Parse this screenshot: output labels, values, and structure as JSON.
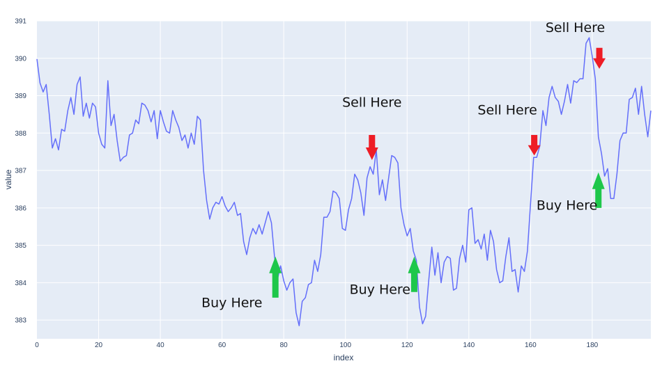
{
  "chart_data": {
    "type": "line",
    "title": "",
    "xlabel": "index",
    "ylabel": "value",
    "xlim": [
      0,
      199
    ],
    "ylim": [
      382.5,
      391
    ],
    "x_ticks": [
      "0",
      "20",
      "40",
      "60",
      "80",
      "100",
      "120",
      "140",
      "160",
      "180"
    ],
    "y_ticks": [
      "383",
      "384",
      "385",
      "386",
      "387",
      "388",
      "389",
      "390",
      "391"
    ],
    "grid": true,
    "colors": {
      "plot_bg": "#e5ecf6",
      "grid": "#ffffff",
      "line": "#636efa",
      "sell_arrow": "#ee1c25",
      "buy_arrow": "#1ec74a"
    },
    "series": [
      {
        "name": "",
        "x": [
          0,
          1,
          2,
          3,
          4,
          5,
          6,
          7,
          8,
          9,
          10,
          11,
          12,
          13,
          14,
          15,
          16,
          17,
          18,
          19,
          20,
          21,
          22,
          23,
          24,
          25,
          26,
          27,
          28,
          29,
          30,
          31,
          32,
          33,
          34,
          35,
          36,
          37,
          38,
          39,
          40,
          41,
          42,
          43,
          44,
          45,
          46,
          47,
          48,
          49,
          50,
          51,
          52,
          53,
          54,
          55,
          56,
          57,
          58,
          59,
          60,
          61,
          62,
          63,
          64,
          65,
          66,
          67,
          68,
          69,
          70,
          71,
          72,
          73,
          74,
          75,
          76,
          77,
          78,
          79,
          80,
          81,
          82,
          83,
          84,
          85,
          86,
          87,
          88,
          89,
          90,
          91,
          92,
          93,
          94,
          95,
          96,
          97,
          98,
          99,
          100,
          101,
          102,
          103,
          104,
          105,
          106,
          107,
          108,
          109,
          110,
          111,
          112,
          113,
          114,
          115,
          116,
          117,
          118,
          119,
          120,
          121,
          122,
          123,
          124,
          125,
          126,
          127,
          128,
          129,
          130,
          131,
          132,
          133,
          134,
          135,
          136,
          137,
          138,
          139,
          140,
          141,
          142,
          143,
          144,
          145,
          146,
          147,
          148,
          149,
          150,
          151,
          152,
          153,
          154,
          155,
          156,
          157,
          158,
          159,
          160,
          161,
          162,
          163,
          164,
          165,
          166,
          167,
          168,
          169,
          170,
          171,
          172,
          173,
          174,
          175,
          176,
          177,
          178,
          179,
          180,
          181,
          182,
          183,
          184,
          185,
          186,
          187,
          188,
          189,
          190,
          191,
          192,
          193,
          194,
          195,
          196,
          197,
          198,
          199
        ],
        "y": [
          389.98,
          389.34,
          389.1,
          389.3,
          388.5,
          387.6,
          387.85,
          387.55,
          388.1,
          388.05,
          388.6,
          388.95,
          388.5,
          389.3,
          389.5,
          388.45,
          388.8,
          388.4,
          388.8,
          388.7,
          388.0,
          387.7,
          387.6,
          389.4,
          388.2,
          388.5,
          387.8,
          387.25,
          387.35,
          387.4,
          387.95,
          388.0,
          388.35,
          388.25,
          388.8,
          388.75,
          388.6,
          388.3,
          388.6,
          387.85,
          388.6,
          388.3,
          388.05,
          388.0,
          388.6,
          388.35,
          388.15,
          387.8,
          387.95,
          387.6,
          388.0,
          387.7,
          388.45,
          388.35,
          387.0,
          386.2,
          385.7,
          386.0,
          386.15,
          386.1,
          386.3,
          386.05,
          385.9,
          386.0,
          386.15,
          385.8,
          385.85,
          385.1,
          384.75,
          385.2,
          385.45,
          385.3,
          385.55,
          385.3,
          385.6,
          385.9,
          385.6,
          384.7,
          384.1,
          384.45,
          384.05,
          383.8,
          384.0,
          384.1,
          383.2,
          382.85,
          383.5,
          383.6,
          383.95,
          384.0,
          384.6,
          384.3,
          384.75,
          385.75,
          385.75,
          385.9,
          386.45,
          386.4,
          386.25,
          385.45,
          385.4,
          385.95,
          386.25,
          386.9,
          386.75,
          386.4,
          385.8,
          386.8,
          387.1,
          386.9,
          387.55,
          386.35,
          386.75,
          386.2,
          386.8,
          387.4,
          387.35,
          387.2,
          386.0,
          385.55,
          385.25,
          385.45,
          384.85,
          384.6,
          383.35,
          382.9,
          383.1,
          384.05,
          384.95,
          384.2,
          384.8,
          384.0,
          384.55,
          384.7,
          384.65,
          383.8,
          383.85,
          384.65,
          385.0,
          384.55,
          385.95,
          386.0,
          385.05,
          385.15,
          384.9,
          385.3,
          384.6,
          385.4,
          385.1,
          384.35,
          384.0,
          384.05,
          384.7,
          385.2,
          384.3,
          384.35,
          383.75,
          384.45,
          384.3,
          384.85,
          386.1,
          387.35,
          387.35,
          387.65,
          388.6,
          388.2,
          388.95,
          389.25,
          388.95,
          388.85,
          388.5,
          388.85,
          389.3,
          388.8,
          389.4,
          389.35,
          389.45,
          389.45,
          390.4,
          390.55,
          390.05,
          389.45,
          387.9,
          387.45,
          386.85,
          387.05,
          386.25,
          386.25,
          386.9,
          387.8,
          388.0,
          388.0,
          388.9,
          388.95,
          389.2,
          388.5,
          389.25,
          388.5,
          387.9,
          388.6
        ]
      }
    ],
    "annotations": [
      {
        "text": "Sell Here",
        "kind": "sell",
        "x": 108.6,
        "y": 387.95,
        "arrow_tip_y": 387.28,
        "label_x": 108.6,
        "label_y": 388.7
      },
      {
        "text": "Sell Here",
        "kind": "sell",
        "x": 161.2,
        "y": 387.95,
        "arrow_tip_y": 387.4,
        "label_x": 152.5,
        "label_y": 388.5
      },
      {
        "text": "Sell Here",
        "kind": "sell",
        "x": 182.3,
        "y": 390.28,
        "arrow_tip_y": 389.72,
        "label_x": 174.5,
        "label_y": 390.7
      },
      {
        "text": "Buy Here",
        "kind": "buy",
        "x": 77.3,
        "y": 383.6,
        "arrow_tip_y": 384.7,
        "label_x": 63.2,
        "label_y": 383.35
      },
      {
        "text": "Buy Here",
        "kind": "buy",
        "x": 122.3,
        "y": 383.75,
        "arrow_tip_y": 384.7,
        "label_x": 111.2,
        "label_y": 383.7
      },
      {
        "text": "Buy Here",
        "kind": "buy",
        "x": 182.0,
        "y": 386.0,
        "arrow_tip_y": 386.95,
        "label_x": 171.8,
        "label_y": 385.95
      }
    ]
  }
}
